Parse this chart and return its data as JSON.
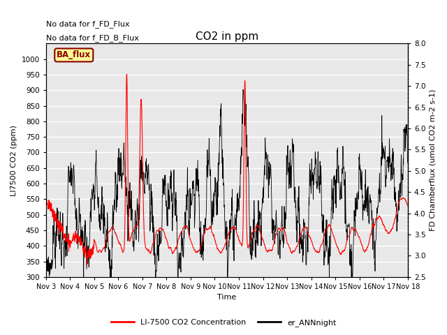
{
  "title": "CO2 in ppm",
  "xlabel": "Time",
  "ylabel_left": "LI7500 CO2 (ppm)",
  "ylabel_right": "FD Chamberflux (umol CO2 m-2 s-1)",
  "annotation1": "No data for f_FD_Flux",
  "annotation2": "No data for f_FD_B_Flux",
  "legend_box_label": "BA_flux",
  "legend_box_color": "#ffff99",
  "legend_box_edge": "#8B0000",
  "legend_box_text_color": "#8B0000",
  "ylim_left": [
    300,
    1050
  ],
  "ylim_right": [
    2.5,
    8.0
  ],
  "yticks_left": [
    300,
    350,
    400,
    450,
    500,
    550,
    600,
    650,
    700,
    750,
    800,
    850,
    900,
    950,
    1000
  ],
  "yticks_right": [
    2.5,
    3.0,
    3.5,
    4.0,
    4.5,
    5.0,
    5.5,
    6.0,
    6.5,
    7.0,
    7.5,
    8.0
  ],
  "xtick_labels": [
    "Nov 3",
    "Nov 4",
    "Nov 5",
    "Nov 6",
    "Nov 7",
    "Nov 8",
    "Nov 9",
    "Nov 10",
    "Nov 11",
    "Nov 12",
    "Nov 13",
    "Nov 14",
    "Nov 15",
    "Nov 16",
    "Nov 17",
    "Nov 18"
  ],
  "legend_label_red": "LI-7500 CO2 Concentration",
  "legend_label_black": "er_ANNnight",
  "line_color_red": "#ff0000",
  "line_color_black": "#000000",
  "plot_bg_color": "#e8e8e8",
  "fig_bg_color": "#ffffff",
  "grid_color": "#ffffff",
  "title_fontsize": 11,
  "label_fontsize": 8,
  "tick_fontsize": 7.5,
  "annot_fontsize": 8
}
